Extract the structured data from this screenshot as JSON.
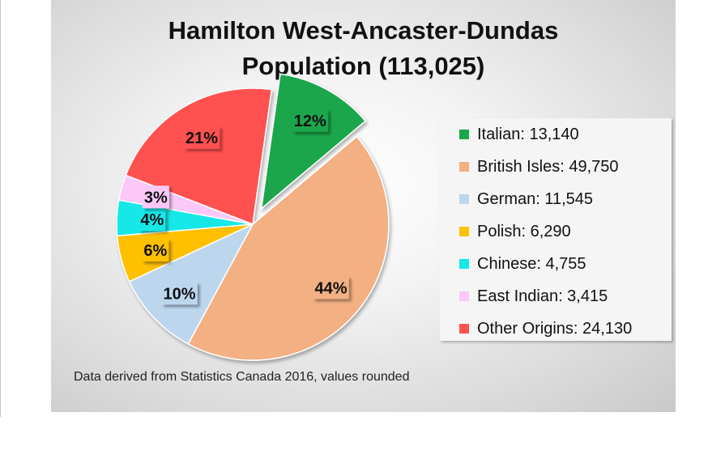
{
  "chart_data": {
    "type": "pie",
    "title": "Hamilton West-Ancaster-Dundas",
    "subtitle": "Population (113,025)",
    "slices": [
      {
        "label": "Italian",
        "value": 13140,
        "percent_label": "12%",
        "legend": "Italian: 13,140",
        "color": "#1aa64b",
        "exploded": true
      },
      {
        "label": "British Isles",
        "value": 49750,
        "percent_label": "44%",
        "legend": "British Isles: 49,750",
        "color": "#f2b083",
        "exploded": false
      },
      {
        "label": "German",
        "value": 11545,
        "percent_label": "10%",
        "legend": "German: 11,545",
        "color": "#bcd6ee",
        "exploded": false
      },
      {
        "label": "Polish",
        "value": 6290,
        "percent_label": "6%",
        "legend": "Polish: 6,290",
        "color": "#ffc000",
        "exploded": false
      },
      {
        "label": "Chinese",
        "value": 4755,
        "percent_label": "4%",
        "legend": "Chinese: 4,755",
        "color": "#14e8e8",
        "exploded": false
      },
      {
        "label": "East Indian",
        "value": 3415,
        "percent_label": "3%",
        "legend": "East Indian: 3,415",
        "color": "#fbc8f8",
        "exploded": false
      },
      {
        "label": "Other Origins",
        "value": 24130,
        "percent_label": "21%",
        "legend": "Other Origins: 24,130",
        "color": "#ff5150",
        "exploded": false
      }
    ],
    "legend_position": "right",
    "note": "Data derived from Statistics Canada 2016, values rounded"
  }
}
